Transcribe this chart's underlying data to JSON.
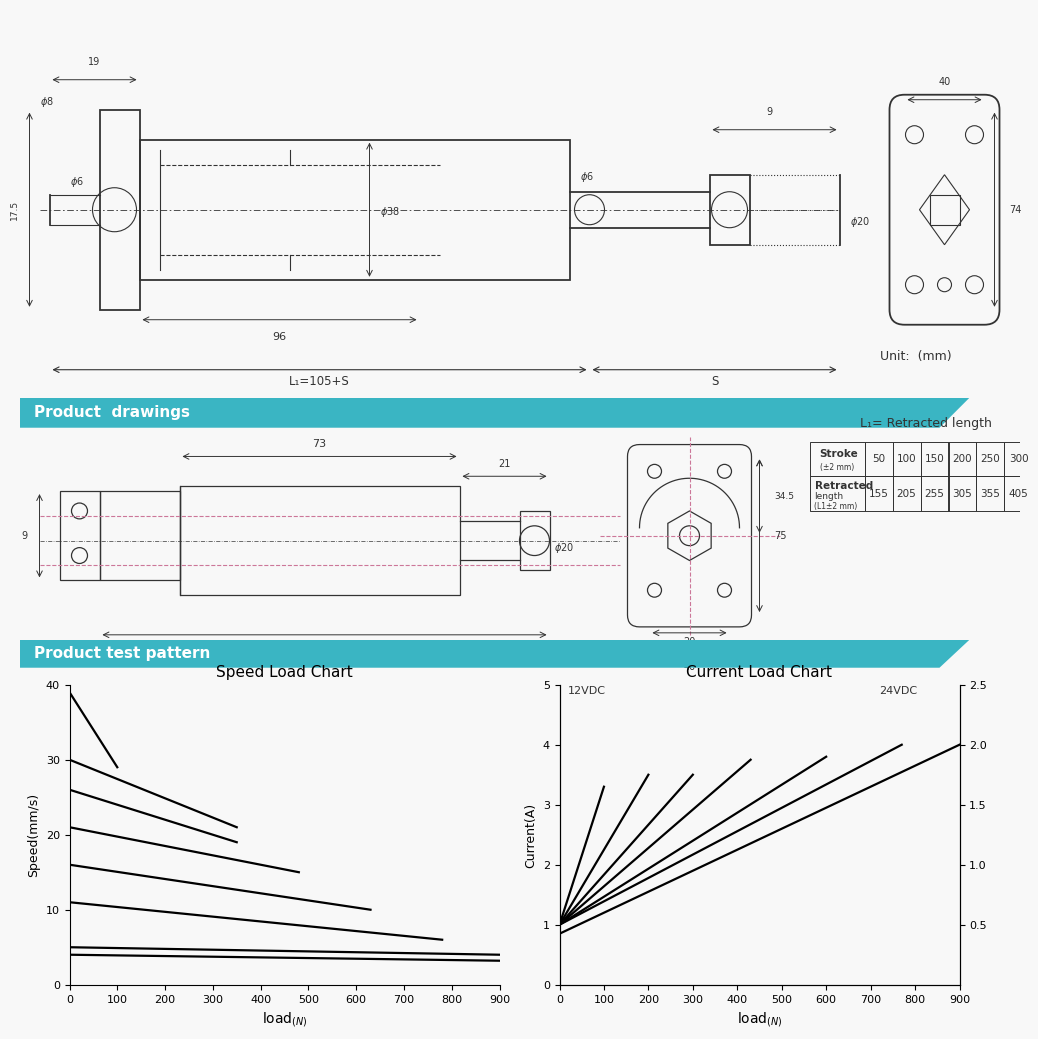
{
  "bg_color": "#f8f8f8",
  "teal_color": "#3ab5c3",
  "dark_color": "#333333",
  "banner1_text": "Product  drawings",
  "banner2_text": "Product test pattern",
  "unit_text": "Unit:  (mm)",
  "table_row1": [
    "Stroke\n(±2 mm)",
    "50",
    "100",
    "150",
    "200",
    "250",
    "300"
  ],
  "table_row2": [
    "Retracted\nlength\n(L1±2 mm)",
    "155",
    "205",
    "255",
    "305",
    "355",
    "405"
  ],
  "speed_chart": {
    "title": "Speed Load Chart",
    "ylabel": "Speed(mm/s)",
    "xlim": [
      0,
      900
    ],
    "ylim": [
      0,
      40
    ],
    "xticks": [
      0,
      100,
      200,
      300,
      400,
      500,
      600,
      700,
      800,
      900
    ],
    "yticks": [
      0,
      10,
      20,
      30,
      40
    ],
    "lines": [
      {
        "x": [
          0,
          100
        ],
        "y": [
          39,
          29
        ]
      },
      {
        "x": [
          0,
          350
        ],
        "y": [
          30,
          21
        ]
      },
      {
        "x": [
          0,
          350
        ],
        "y": [
          26,
          19
        ]
      },
      {
        "x": [
          0,
          480
        ],
        "y": [
          21,
          15
        ]
      },
      {
        "x": [
          0,
          630
        ],
        "y": [
          16,
          10
        ]
      },
      {
        "x": [
          0,
          780
        ],
        "y": [
          11,
          6
        ]
      },
      {
        "x": [
          0,
          900
        ],
        "y": [
          5,
          4
        ]
      },
      {
        "x": [
          0,
          900
        ],
        "y": [
          4,
          3.2
        ]
      }
    ]
  },
  "current_chart": {
    "title": "Current Load Chart",
    "ylabel": "Current(A)",
    "xlim": [
      0,
      900
    ],
    "ylim": [
      0,
      5.0
    ],
    "xticks": [
      0,
      100,
      200,
      300,
      400,
      500,
      600,
      700,
      800,
      900
    ],
    "yticks": [
      0,
      1.0,
      2.0,
      3.0,
      4.0,
      5.0
    ],
    "label_12vdc": "12VDC",
    "label_24vdc": "24VDC",
    "right_ticks": [
      0.5,
      1.0,
      1.5,
      2.0,
      2.5
    ],
    "lines": [
      {
        "x": [
          0,
          100
        ],
        "y": [
          1.0,
          3.3
        ]
      },
      {
        "x": [
          0,
          200
        ],
        "y": [
          1.0,
          3.5
        ]
      },
      {
        "x": [
          0,
          300
        ],
        "y": [
          1.0,
          3.5
        ]
      },
      {
        "x": [
          0,
          430
        ],
        "y": [
          1.0,
          3.75
        ]
      },
      {
        "x": [
          0,
          600
        ],
        "y": [
          1.0,
          3.8
        ]
      },
      {
        "x": [
          0,
          770
        ],
        "y": [
          1.0,
          4.0
        ]
      },
      {
        "x": [
          0,
          900
        ],
        "y": [
          0.85,
          4.0
        ]
      }
    ]
  }
}
